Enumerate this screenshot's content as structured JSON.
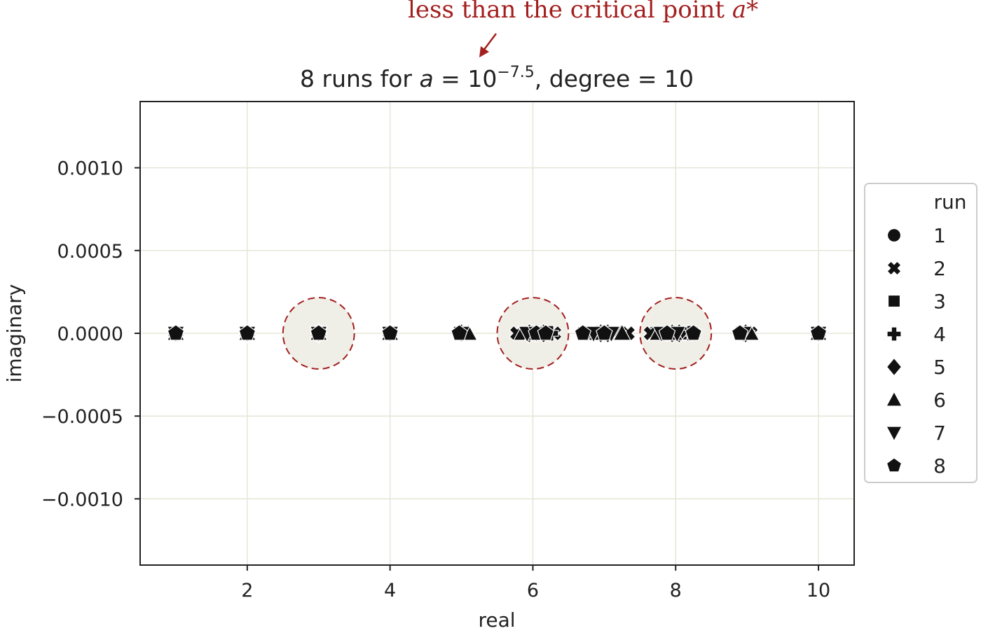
{
  "annotation": {
    "text": "less than the critical point ",
    "symbol": "a*",
    "color": "#a31f1f"
  },
  "chart_data": {
    "type": "scatter",
    "title": {
      "prefix": "8 runs for ",
      "var": "a",
      "eq": " = 10",
      "exponent": "−7.5",
      "suffix": ", degree = 10"
    },
    "xlabel": "real",
    "ylabel": "imaginary",
    "xlim": [
      0.5,
      10.5
    ],
    "ylim": [
      -0.0014,
      0.0014
    ],
    "xticks": [
      2,
      4,
      6,
      8,
      10
    ],
    "xtick_labels": [
      "2",
      "4",
      "6",
      "8",
      "10"
    ],
    "yticks": [
      0.001,
      0.0005,
      0.0,
      -0.0005,
      -0.001
    ],
    "ytick_labels": [
      "0.0010",
      "0.0005",
      "0.0000",
      "−0.0005",
      "−0.0010"
    ],
    "grid": true,
    "legend": {
      "title": "run",
      "placement": "outside-right",
      "entries": [
        {
          "label": "1",
          "marker": "circle"
        },
        {
          "label": "2",
          "marker": "x"
        },
        {
          "label": "3",
          "marker": "square"
        },
        {
          "label": "4",
          "marker": "plus"
        },
        {
          "label": "5",
          "marker": "diamond"
        },
        {
          "label": "6",
          "marker": "triangle-up"
        },
        {
          "label": "7",
          "marker": "triangle-down"
        },
        {
          "label": "8",
          "marker": "pentagon"
        }
      ]
    },
    "series": [
      {
        "name": "1",
        "marker": "circle",
        "x": [
          1.0,
          2.0,
          3.0,
          4.0,
          4.98,
          5.85,
          6.1,
          6.8,
          7.15,
          7.7,
          8.1,
          8.9,
          10.0
        ],
        "y": [
          0,
          0,
          0,
          0,
          0,
          0,
          0,
          0,
          0,
          0,
          0,
          0,
          0
        ]
      },
      {
        "name": "2",
        "marker": "x",
        "x": [
          1.0,
          2.0,
          3.0,
          4.0,
          4.99,
          5.78,
          6.3,
          6.75,
          7.33,
          7.65,
          8.25,
          9.05,
          10.0
        ],
        "y": [
          0,
          0,
          0,
          0,
          0,
          0,
          0,
          0,
          0,
          0,
          0,
          0,
          0
        ]
      },
      {
        "name": "3",
        "marker": "square",
        "x": [
          1.0,
          2.0,
          3.0,
          4.0,
          5.0,
          5.9,
          6.2,
          6.72,
          7.05,
          7.85,
          8.15,
          8.95,
          10.0
        ],
        "y": [
          0,
          0,
          0,
          0,
          0,
          0,
          0,
          0,
          0,
          0,
          0,
          0,
          0
        ]
      },
      {
        "name": "4",
        "marker": "plus",
        "x": [
          1.0,
          2.0,
          3.0,
          4.0,
          5.0,
          6.0,
          6.25,
          6.78,
          7.2,
          7.9,
          8.2,
          9.0,
          10.0
        ],
        "y": [
          0,
          0,
          0,
          0,
          0,
          0,
          0,
          0,
          0,
          0,
          0,
          0,
          0
        ]
      },
      {
        "name": "5",
        "marker": "diamond",
        "x": [
          1.0,
          2.0,
          3.0,
          4.0,
          5.0,
          5.95,
          6.15,
          6.95,
          7.05,
          7.95,
          8.05,
          8.98,
          10.0
        ],
        "y": [
          0,
          0,
          0,
          0,
          0,
          0,
          0,
          0,
          0,
          0,
          0,
          0,
          0
        ]
      },
      {
        "name": "6",
        "marker": "triangle-up",
        "x": [
          1.0,
          2.0,
          3.0,
          4.0,
          5.1,
          5.85,
          6.0,
          6.9,
          7.25,
          7.75,
          7.98,
          9.05,
          10.0
        ],
        "y": [
          0,
          0,
          0,
          0,
          0,
          0,
          0,
          0,
          0,
          0,
          0,
          0,
          0
        ]
      },
      {
        "name": "7",
        "marker": "triangle-down",
        "x": [
          1.0,
          2.0,
          3.0,
          4.0,
          5.0,
          5.92,
          6.05,
          6.85,
          7.1,
          7.8,
          8.02,
          8.95,
          10.0
        ],
        "y": [
          0,
          0,
          0,
          0,
          0,
          0,
          0,
          0,
          0,
          0,
          0,
          0,
          0
        ]
      },
      {
        "name": "8",
        "marker": "pentagon",
        "x": [
          1.0,
          2.0,
          3.0,
          4.0,
          4.97,
          6.05,
          6.18,
          6.7,
          7.0,
          7.88,
          8.25,
          8.9,
          10.0
        ],
        "y": [
          0,
          0,
          0,
          0,
          0,
          0,
          0,
          0,
          0,
          0,
          0,
          0,
          0
        ]
      }
    ],
    "highlights": [
      {
        "x": 3,
        "y": 0,
        "radius_x": 0.5,
        "style": "dashed-circle",
        "color": "#a31f1f",
        "fill": "#f0efe7"
      },
      {
        "x": 6,
        "y": 0,
        "radius_x": 0.5,
        "style": "dashed-circle",
        "color": "#a31f1f",
        "fill": "#f0efe7"
      },
      {
        "x": 8,
        "y": 0,
        "radius_x": 0.5,
        "style": "dashed-circle",
        "color": "#a31f1f",
        "fill": "#f0efe7"
      }
    ],
    "marker_color": "#111111",
    "grid_color": "#e5e5d8"
  }
}
